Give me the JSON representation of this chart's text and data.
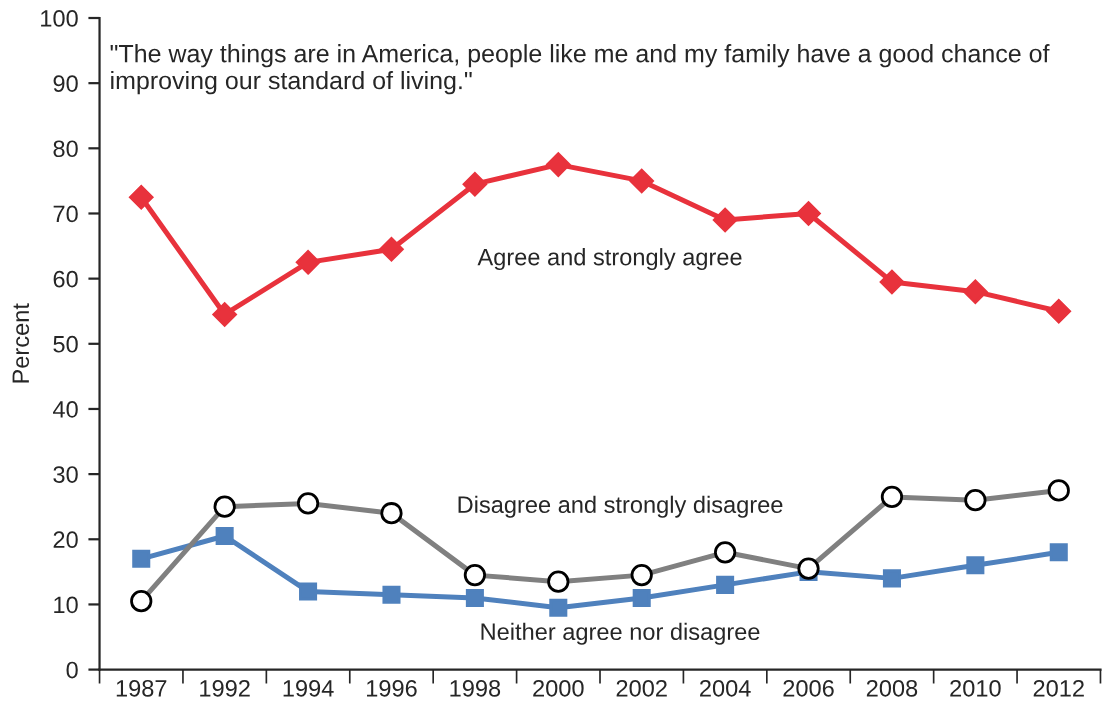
{
  "chart_data": {
    "type": "line",
    "title": "\"The way things are in America, people like me and my family have a good chance of improving our standard of living.\"",
    "ylabel": "Percent",
    "categories": [
      "1987",
      "1992",
      "1994",
      "1996",
      "1998",
      "2000",
      "2002",
      "2004",
      "2006",
      "2008",
      "2010",
      "2012"
    ],
    "series": [
      {
        "name": "Agree and strongly agree",
        "color": "#e8323c",
        "marker": "diamond",
        "values": [
          72.5,
          54.5,
          62.5,
          64.5,
          74.5,
          77.5,
          75,
          69,
          70,
          59.5,
          58,
          55
        ]
      },
      {
        "name": "Disagree and strongly disagree",
        "color": "#808080",
        "marker": "circle",
        "values": [
          10.5,
          25,
          25.5,
          24,
          14.5,
          13.5,
          14.5,
          18,
          15.5,
          26.5,
          26,
          27.5
        ]
      },
      {
        "name": "Neither agree nor disagree",
        "color": "#4f81bd",
        "marker": "square",
        "values": [
          17,
          20.5,
          12,
          11.5,
          11,
          9.5,
          11,
          13,
          15,
          14,
          16,
          18
        ]
      }
    ],
    "ylim": [
      0,
      100
    ],
    "yticks": [
      0,
      10,
      20,
      30,
      40,
      50,
      60,
      70,
      80,
      90,
      100
    ],
    "grid": false,
    "legend": false,
    "line_style": "solid"
  }
}
